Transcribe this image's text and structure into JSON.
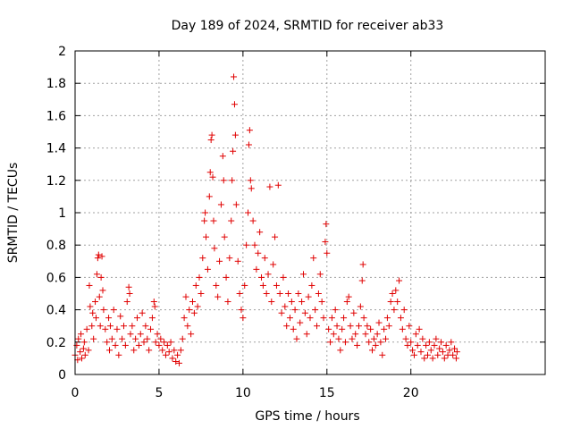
{
  "chart_data": {
    "type": "scatter",
    "title": "Day 189 of 2024, SRMTID for receiver ab33",
    "xlabel": "GPS time / hours",
    "ylabel": "SRMTID / TECUs",
    "xlim": [
      0,
      28
    ],
    "ylim": [
      0,
      2
    ],
    "xticks": [
      "0",
      "5",
      "10",
      "15",
      "20"
    ],
    "yticks": [
      "0",
      "0.2",
      "0.4",
      "0.6",
      "0.8",
      "1",
      "1.2",
      "1.4",
      "1.6",
      "1.8",
      "2"
    ],
    "grid": true,
    "marker": "+",
    "color": "#e00000",
    "series": [
      {
        "name": "ab33",
        "points": [
          [
            0.0,
            0.12
          ],
          [
            0.1,
            0.18
          ],
          [
            0.15,
            0.09
          ],
          [
            0.2,
            0.22
          ],
          [
            0.3,
            0.14
          ],
          [
            0.35,
            0.25
          ],
          [
            0.4,
            0.1
          ],
          [
            0.5,
            0.16
          ],
          [
            0.55,
            0.2
          ],
          [
            0.6,
            0.12
          ],
          [
            0.7,
            0.28
          ],
          [
            0.8,
            0.15
          ],
          [
            0.85,
            0.55
          ],
          [
            0.9,
            0.42
          ],
          [
            1.0,
            0.3
          ],
          [
            1.05,
            0.38
          ],
          [
            1.1,
            0.22
          ],
          [
            1.2,
            0.45
          ],
          [
            1.25,
            0.35
          ],
          [
            1.3,
            0.62
          ],
          [
            1.35,
            0.72
          ],
          [
            1.4,
            0.74
          ],
          [
            1.45,
            0.48
          ],
          [
            1.5,
            0.3
          ],
          [
            1.55,
            0.6
          ],
          [
            1.6,
            0.73
          ],
          [
            1.65,
            0.52
          ],
          [
            1.7,
            0.4
          ],
          [
            1.8,
            0.28
          ],
          [
            1.9,
            0.2
          ],
          [
            2.0,
            0.35
          ],
          [
            2.05,
            0.15
          ],
          [
            2.1,
            0.3
          ],
          [
            2.2,
            0.22
          ],
          [
            2.3,
            0.4
          ],
          [
            2.4,
            0.18
          ],
          [
            2.5,
            0.28
          ],
          [
            2.6,
            0.12
          ],
          [
            2.7,
            0.36
          ],
          [
            2.8,
            0.22
          ],
          [
            2.9,
            0.3
          ],
          [
            3.0,
            0.18
          ],
          [
            3.1,
            0.45
          ],
          [
            3.2,
            0.54
          ],
          [
            3.25,
            0.5
          ],
          [
            3.3,
            0.25
          ],
          [
            3.4,
            0.3
          ],
          [
            3.5,
            0.15
          ],
          [
            3.6,
            0.22
          ],
          [
            3.7,
            0.35
          ],
          [
            3.8,
            0.18
          ],
          [
            3.9,
            0.25
          ],
          [
            4.0,
            0.38
          ],
          [
            4.1,
            0.2
          ],
          [
            4.2,
            0.3
          ],
          [
            4.3,
            0.22
          ],
          [
            4.4,
            0.15
          ],
          [
            4.5,
            0.28
          ],
          [
            4.6,
            0.35
          ],
          [
            4.7,
            0.45
          ],
          [
            4.75,
            0.42
          ],
          [
            4.8,
            0.2
          ],
          [
            4.9,
            0.25
          ],
          [
            5.0,
            0.18
          ],
          [
            5.1,
            0.22
          ],
          [
            5.2,
            0.15
          ],
          [
            5.3,
            0.2
          ],
          [
            5.4,
            0.12
          ],
          [
            5.5,
            0.18
          ],
          [
            5.6,
            0.14
          ],
          [
            5.7,
            0.2
          ],
          [
            5.8,
            0.1
          ],
          [
            5.9,
            0.15
          ],
          [
            6.0,
            0.08
          ],
          [
            6.1,
            0.12
          ],
          [
            6.2,
            0.07
          ],
          [
            6.3,
            0.15
          ],
          [
            6.4,
            0.22
          ],
          [
            6.5,
            0.35
          ],
          [
            6.6,
            0.48
          ],
          [
            6.7,
            0.3
          ],
          [
            6.8,
            0.4
          ],
          [
            6.9,
            0.25
          ],
          [
            7.0,
            0.45
          ],
          [
            7.1,
            0.38
          ],
          [
            7.2,
            0.55
          ],
          [
            7.3,
            0.42
          ],
          [
            7.4,
            0.6
          ],
          [
            7.5,
            0.5
          ],
          [
            7.6,
            0.72
          ],
          [
            7.7,
            0.95
          ],
          [
            7.75,
            1.0
          ],
          [
            7.8,
            0.85
          ],
          [
            7.9,
            0.65
          ],
          [
            8.0,
            1.1
          ],
          [
            8.05,
            1.25
          ],
          [
            8.1,
            1.45
          ],
          [
            8.15,
            1.48
          ],
          [
            8.2,
            1.22
          ],
          [
            8.25,
            0.95
          ],
          [
            8.3,
            0.78
          ],
          [
            8.4,
            0.55
          ],
          [
            8.5,
            0.48
          ],
          [
            8.6,
            0.7
          ],
          [
            8.7,
            1.05
          ],
          [
            8.8,
            1.35
          ],
          [
            8.85,
            1.2
          ],
          [
            8.9,
            0.85
          ],
          [
            9.0,
            0.6
          ],
          [
            9.1,
            0.45
          ],
          [
            9.2,
            0.72
          ],
          [
            9.3,
            0.95
          ],
          [
            9.35,
            1.2
          ],
          [
            9.4,
            1.38
          ],
          [
            9.45,
            1.84
          ],
          [
            9.5,
            1.67
          ],
          [
            9.55,
            1.48
          ],
          [
            9.6,
            1.05
          ],
          [
            9.7,
            0.7
          ],
          [
            9.8,
            0.5
          ],
          [
            9.9,
            0.4
          ],
          [
            10.0,
            0.35
          ],
          [
            10.1,
            0.55
          ],
          [
            10.2,
            0.8
          ],
          [
            10.3,
            1.0
          ],
          [
            10.35,
            1.42
          ],
          [
            10.4,
            1.51
          ],
          [
            10.45,
            1.2
          ],
          [
            10.5,
            1.15
          ],
          [
            10.6,
            0.95
          ],
          [
            10.7,
            0.8
          ],
          [
            10.8,
            0.65
          ],
          [
            10.9,
            0.75
          ],
          [
            11.0,
            0.88
          ],
          [
            11.1,
            0.6
          ],
          [
            11.2,
            0.55
          ],
          [
            11.3,
            0.72
          ],
          [
            11.4,
            0.5
          ],
          [
            11.5,
            0.62
          ],
          [
            11.6,
            1.16
          ],
          [
            11.7,
            0.45
          ],
          [
            11.8,
            0.68
          ],
          [
            11.9,
            0.85
          ],
          [
            12.0,
            0.55
          ],
          [
            12.1,
            1.17
          ],
          [
            12.2,
            0.5
          ],
          [
            12.3,
            0.38
          ],
          [
            12.4,
            0.6
          ],
          [
            12.5,
            0.42
          ],
          [
            12.6,
            0.3
          ],
          [
            12.7,
            0.5
          ],
          [
            12.8,
            0.35
          ],
          [
            12.9,
            0.45
          ],
          [
            13.0,
            0.28
          ],
          [
            13.1,
            0.4
          ],
          [
            13.2,
            0.22
          ],
          [
            13.3,
            0.5
          ],
          [
            13.4,
            0.32
          ],
          [
            13.5,
            0.45
          ],
          [
            13.6,
            0.62
          ],
          [
            13.7,
            0.38
          ],
          [
            13.8,
            0.25
          ],
          [
            13.9,
            0.48
          ],
          [
            14.0,
            0.35
          ],
          [
            14.1,
            0.55
          ],
          [
            14.2,
            0.72
          ],
          [
            14.3,
            0.4
          ],
          [
            14.4,
            0.3
          ],
          [
            14.5,
            0.5
          ],
          [
            14.6,
            0.62
          ],
          [
            14.7,
            0.45
          ],
          [
            14.8,
            0.35
          ],
          [
            14.9,
            0.82
          ],
          [
            14.95,
            0.93
          ],
          [
            15.0,
            0.75
          ],
          [
            15.1,
            0.28
          ],
          [
            15.2,
            0.2
          ],
          [
            15.3,
            0.35
          ],
          [
            15.4,
            0.25
          ],
          [
            15.5,
            0.4
          ],
          [
            15.6,
            0.3
          ],
          [
            15.7,
            0.22
          ],
          [
            15.8,
            0.15
          ],
          [
            15.9,
            0.28
          ],
          [
            16.0,
            0.35
          ],
          [
            16.1,
            0.2
          ],
          [
            16.2,
            0.45
          ],
          [
            16.3,
            0.48
          ],
          [
            16.4,
            0.3
          ],
          [
            16.5,
            0.22
          ],
          [
            16.6,
            0.38
          ],
          [
            16.7,
            0.25
          ],
          [
            16.8,
            0.18
          ],
          [
            16.9,
            0.3
          ],
          [
            17.0,
            0.42
          ],
          [
            17.1,
            0.58
          ],
          [
            17.15,
            0.68
          ],
          [
            17.2,
            0.35
          ],
          [
            17.3,
            0.25
          ],
          [
            17.4,
            0.3
          ],
          [
            17.5,
            0.2
          ],
          [
            17.6,
            0.28
          ],
          [
            17.7,
            0.15
          ],
          [
            17.8,
            0.22
          ],
          [
            17.9,
            0.18
          ],
          [
            18.0,
            0.25
          ],
          [
            18.1,
            0.32
          ],
          [
            18.2,
            0.2
          ],
          [
            18.3,
            0.12
          ],
          [
            18.4,
            0.28
          ],
          [
            18.5,
            0.22
          ],
          [
            18.6,
            0.35
          ],
          [
            18.7,
            0.3
          ],
          [
            18.8,
            0.45
          ],
          [
            18.9,
            0.5
          ],
          [
            19.0,
            0.4
          ],
          [
            19.1,
            0.52
          ],
          [
            19.2,
            0.45
          ],
          [
            19.3,
            0.58
          ],
          [
            19.4,
            0.35
          ],
          [
            19.5,
            0.28
          ],
          [
            19.6,
            0.4
          ],
          [
            19.7,
            0.22
          ],
          [
            19.8,
            0.18
          ],
          [
            19.9,
            0.3
          ],
          [
            20.0,
            0.2
          ],
          [
            20.1,
            0.15
          ],
          [
            20.2,
            0.12
          ],
          [
            20.3,
            0.25
          ],
          [
            20.4,
            0.18
          ],
          [
            20.5,
            0.28
          ],
          [
            20.6,
            0.14
          ],
          [
            20.7,
            0.22
          ],
          [
            20.8,
            0.1
          ],
          [
            20.9,
            0.18
          ],
          [
            21.0,
            0.12
          ],
          [
            21.1,
            0.2
          ],
          [
            21.2,
            0.15
          ],
          [
            21.3,
            0.1
          ],
          [
            21.4,
            0.18
          ],
          [
            21.5,
            0.22
          ],
          [
            21.6,
            0.12
          ],
          [
            21.7,
            0.16
          ],
          [
            21.8,
            0.2
          ],
          [
            21.9,
            0.14
          ],
          [
            22.0,
            0.1
          ],
          [
            22.1,
            0.18
          ],
          [
            22.2,
            0.12
          ],
          [
            22.3,
            0.15
          ],
          [
            22.4,
            0.2
          ],
          [
            22.5,
            0.12
          ],
          [
            22.6,
            0.16
          ],
          [
            22.7,
            0.1
          ],
          [
            22.75,
            0.14
          ]
        ]
      }
    ]
  }
}
